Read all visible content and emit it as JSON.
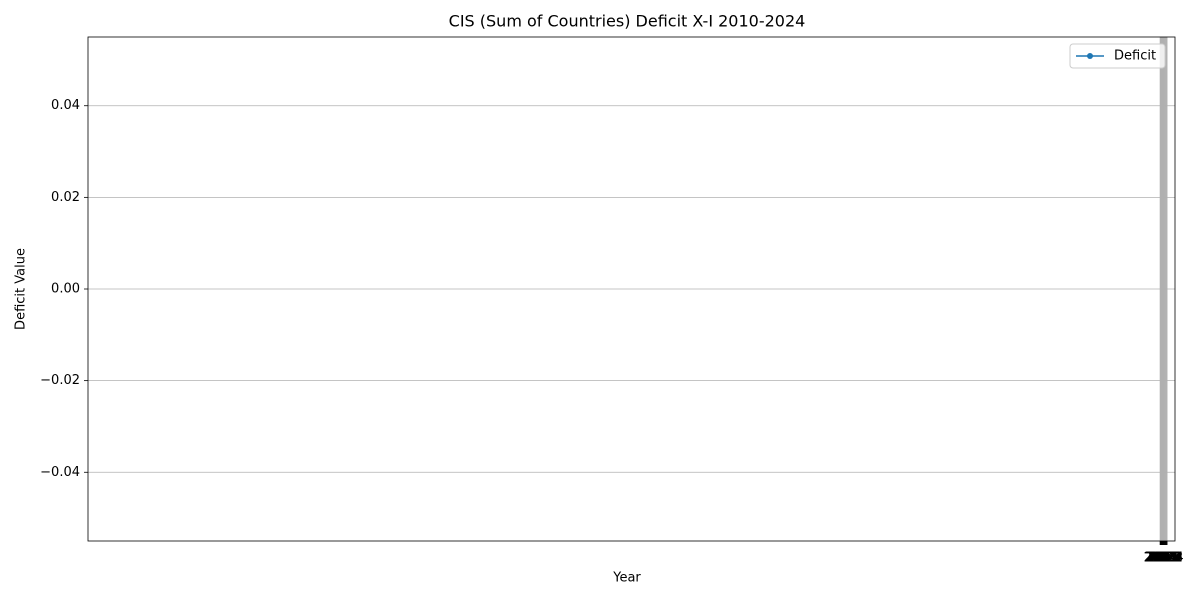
{
  "chart_data": {
    "type": "line",
    "title": "CIS (Sum of Countries) Deficit X-I 2010-2024",
    "xlabel": "Year",
    "ylabel": "Deficit Value",
    "x": [],
    "series": [
      {
        "name": "Deficit",
        "color": "#1f77b4",
        "values": []
      }
    ],
    "xlim": [
      -150,
      2040
    ],
    "xticks": [
      2010,
      2011,
      2012,
      2013,
      2014,
      2015,
      2016,
      2017,
      2018,
      2019,
      2020,
      2021,
      2022,
      2023,
      2024
    ],
    "ylim": [
      -0.055,
      0.055
    ],
    "yticks": [
      {
        "value": -0.04,
        "label": "−0.04"
      },
      {
        "value": -0.02,
        "label": "−0.02"
      },
      {
        "value": 0,
        "label": "0.00"
      },
      0.02,
      0.04
    ],
    "grid": true,
    "legend": "upper right"
  }
}
